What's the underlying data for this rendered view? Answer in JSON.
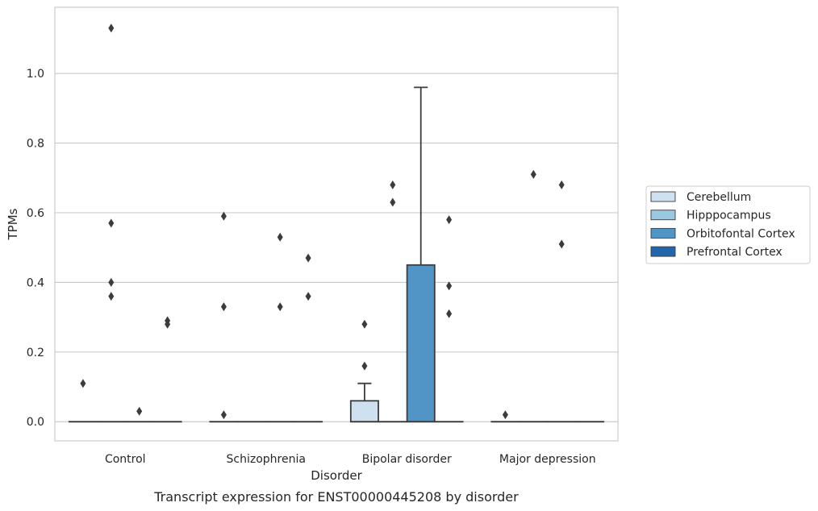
{
  "chart_data": {
    "type": "box",
    "title": "",
    "caption": "Transcript expression for ENST00000445208 by disorder",
    "xlabel": "Disorder",
    "ylabel": "TPMs",
    "ylim": [
      -0.055,
      1.19
    ],
    "yticks": [
      0.0,
      0.2,
      0.4,
      0.6,
      0.8,
      1.0
    ],
    "ytick_labels": [
      "0.0",
      "0.2",
      "0.4",
      "0.6",
      "0.8",
      "1.0"
    ],
    "grid": "horizontal",
    "legend_position": "right",
    "categories": [
      "Control",
      "Schizophrenia",
      "Bipolar disorder",
      "Major depression"
    ],
    "series": [
      {
        "name": "Cerebellum",
        "color": "#cfe0f1",
        "boxes": [
          {
            "q1": 0,
            "median": 0,
            "q3": 0,
            "whisker_low": 0,
            "whisker_high": 0,
            "outliers": [
              0.11
            ]
          },
          {
            "q1": 0,
            "median": 0,
            "q3": 0,
            "whisker_low": 0,
            "whisker_high": 0,
            "outliers": [
              0.02,
              0.33,
              0.59
            ]
          },
          {
            "q1": 0,
            "median": 0,
            "q3": 0.06,
            "whisker_low": 0,
            "whisker_high": 0.11,
            "outliers": [
              0.16,
              0.28
            ]
          },
          {
            "q1": 0,
            "median": 0,
            "q3": 0,
            "whisker_low": 0,
            "whisker_high": 0,
            "outliers": [
              0.02
            ]
          }
        ]
      },
      {
        "name": "Hipppocampus",
        "color": "#9ac8e0",
        "boxes": [
          {
            "q1": 0,
            "median": 0,
            "q3": 0,
            "whisker_low": 0,
            "whisker_high": 0,
            "outliers": [
              0.36,
              0.4,
              0.57,
              1.13
            ]
          },
          {
            "q1": 0,
            "median": 0,
            "q3": 0,
            "whisker_low": 0,
            "whisker_high": 0,
            "outliers": []
          },
          {
            "q1": 0,
            "median": 0,
            "q3": 0,
            "whisker_low": 0,
            "whisker_high": 0,
            "outliers": [
              0.63,
              0.68
            ]
          },
          {
            "q1": 0,
            "median": 0,
            "q3": 0,
            "whisker_low": 0,
            "whisker_high": 0,
            "outliers": [
              0.71
            ]
          }
        ]
      },
      {
        "name": "Orbitofontal Cortex",
        "color": "#5095c6",
        "boxes": [
          {
            "q1": 0,
            "median": 0,
            "q3": 0,
            "whisker_low": 0,
            "whisker_high": 0,
            "outliers": [
              0.03
            ]
          },
          {
            "q1": 0,
            "median": 0,
            "q3": 0,
            "whisker_low": 0,
            "whisker_high": 0,
            "outliers": [
              0.33,
              0.53
            ]
          },
          {
            "q1": 0,
            "median": 0,
            "q3": 0.45,
            "whisker_low": 0,
            "whisker_high": 0.96,
            "outliers": []
          },
          {
            "q1": 0,
            "median": 0,
            "q3": 0,
            "whisker_low": 0,
            "whisker_high": 0,
            "outliers": [
              0.68,
              0.51
            ]
          }
        ]
      },
      {
        "name": "Prefrontal Cortex",
        "color": "#2166ac",
        "boxes": [
          {
            "q1": 0,
            "median": 0,
            "q3": 0,
            "whisker_low": 0,
            "whisker_high": 0,
            "outliers": [
              0.28,
              0.29
            ]
          },
          {
            "q1": 0,
            "median": 0,
            "q3": 0,
            "whisker_low": 0,
            "whisker_high": 0,
            "outliers": [
              0.36,
              0.47
            ]
          },
          {
            "q1": 0,
            "median": 0,
            "q3": 0,
            "whisker_low": 0,
            "whisker_high": 0,
            "outliers": [
              0.31,
              0.39,
              0.58
            ]
          },
          {
            "q1": 0,
            "median": 0,
            "q3": 0,
            "whisker_low": 0,
            "whisker_high": 0,
            "outliers": []
          }
        ]
      }
    ]
  }
}
